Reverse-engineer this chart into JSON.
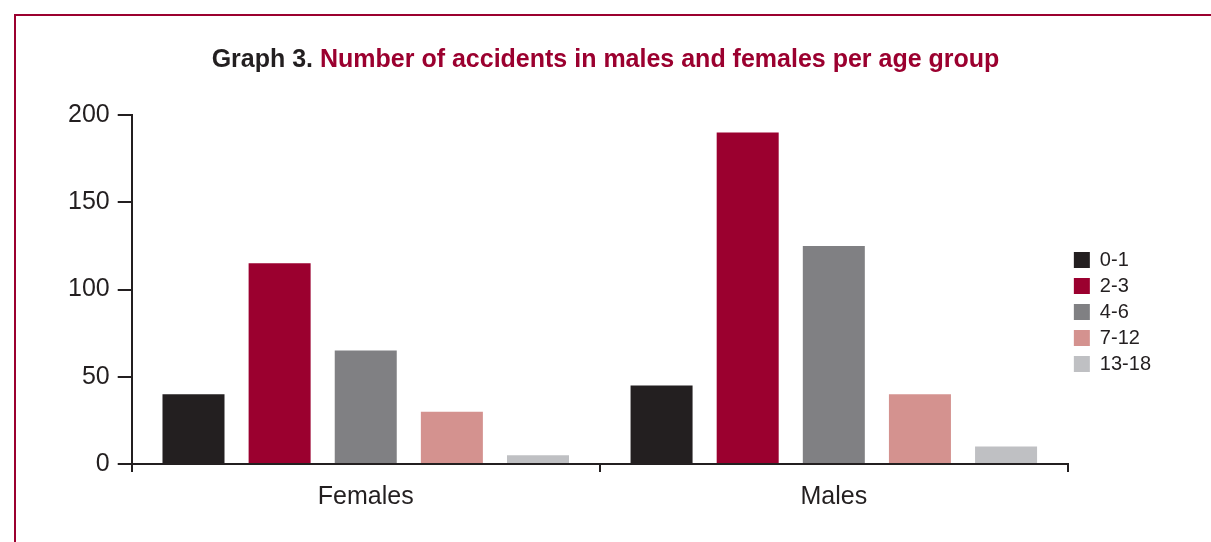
{
  "chart_data": {
    "type": "bar",
    "title": "Graph 3.",
    "subtitle": "Number of accidents in males and females per age group",
    "categories": [
      "Females",
      "Males"
    ],
    "series": [
      {
        "name": "0-1",
        "color": "#231f20",
        "values": [
          40,
          45
        ]
      },
      {
        "name": "2-3",
        "color": "#9b002f",
        "values": [
          115,
          190
        ]
      },
      {
        "name": "4-6",
        "color": "#808083",
        "values": [
          65,
          125
        ]
      },
      {
        "name": "7-12",
        "color": "#d4928f",
        "values": [
          30,
          40
        ]
      },
      {
        "name": "13-18",
        "color": "#bfc0c3",
        "values": [
          5,
          10
        ]
      }
    ],
    "ylim": [
      0,
      200
    ],
    "yticks": [
      0,
      50,
      100,
      150,
      200
    ],
    "legend": "right"
  }
}
